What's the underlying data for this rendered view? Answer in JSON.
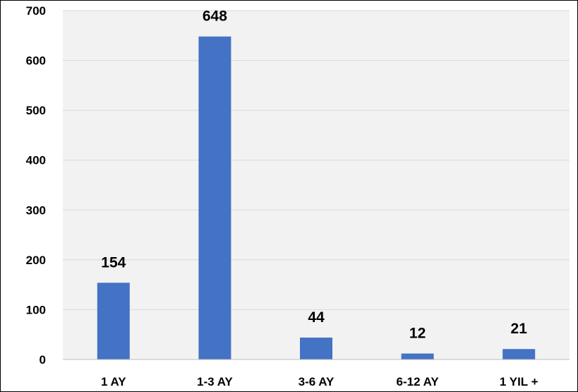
{
  "chart_data": {
    "type": "bar",
    "categories": [
      "1 AY",
      "1-3 AY",
      "3-6 AY",
      "6-12 AY",
      "1 YIL +"
    ],
    "values": [
      154,
      648,
      44,
      12,
      21
    ],
    "title": "",
    "xlabel": "",
    "ylabel": "",
    "ylim": [
      0,
      700
    ],
    "yticks": [
      "0",
      "100",
      "200",
      "300",
      "400",
      "500",
      "600",
      "700"
    ],
    "grid": true,
    "legend": "none",
    "data_labels": [
      "154",
      "648",
      "44",
      "12",
      "21"
    ],
    "colors": {
      "bar": "#4472C4",
      "grid": "#D9D9D9",
      "plot_background": "#F2F2F2",
      "axis_line": "#BFBFBF"
    }
  }
}
